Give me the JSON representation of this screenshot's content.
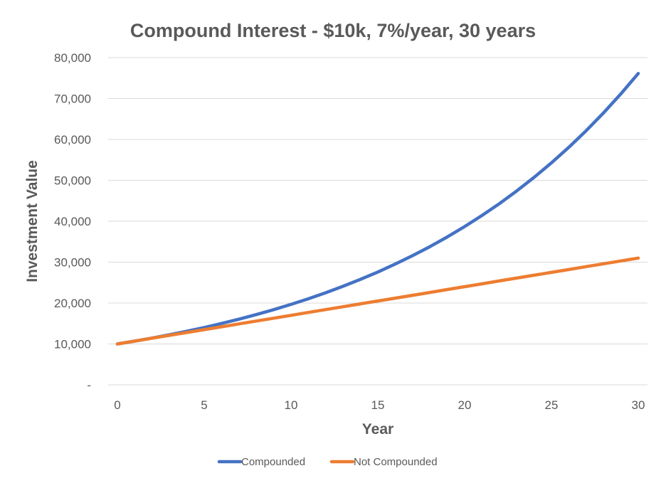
{
  "chart_data": {
    "type": "line",
    "title": "Compound Interest - $10k, 7%/year, 30 years",
    "xlabel": "Year",
    "ylabel": "Investment Value",
    "xlim": [
      0,
      30
    ],
    "ylim": [
      0,
      80000
    ],
    "x_ticks": [
      "0",
      "5",
      "10",
      "15",
      "20",
      "25",
      "30"
    ],
    "y_ticks": [
      "-",
      "10,000",
      "20,000",
      "30,000",
      "40,000",
      "50,000",
      "60,000",
      "70,000",
      "80,000"
    ],
    "grid": true,
    "legend_position": "bottom",
    "x": [
      0,
      1,
      2,
      3,
      4,
      5,
      6,
      7,
      8,
      9,
      10,
      11,
      12,
      13,
      14,
      15,
      16,
      17,
      18,
      19,
      20,
      21,
      22,
      23,
      24,
      25,
      26,
      27,
      28,
      29,
      30
    ],
    "series": [
      {
        "name": "Compounded",
        "color": "#4472c4",
        "values": [
          10000,
          10700,
          11449,
          12250,
          13108,
          14026,
          15007,
          16058,
          17182,
          18385,
          19672,
          21049,
          22522,
          24098,
          25785,
          27590,
          29522,
          31588,
          33799,
          36165,
          38697,
          41406,
          44304,
          47405,
          50724,
          54274,
          58074,
          62139,
          66488,
          71143,
          76123
        ]
      },
      {
        "name": "Not Compounded",
        "color": "#ed7d31",
        "values": [
          10000,
          10700,
          11400,
          12100,
          12800,
          13500,
          14200,
          14900,
          15600,
          16300,
          17000,
          17700,
          18400,
          19100,
          19800,
          20500,
          21200,
          21900,
          22600,
          23300,
          24000,
          24700,
          25400,
          26100,
          26800,
          27500,
          28200,
          28900,
          29600,
          30300,
          31000
        ]
      }
    ]
  }
}
